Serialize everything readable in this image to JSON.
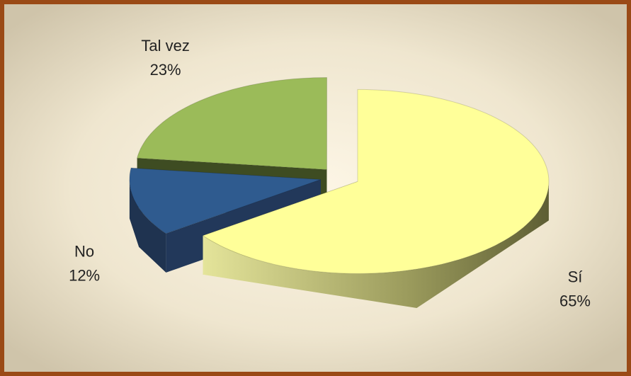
{
  "chart_data": {
    "type": "pie",
    "categories": [
      "Sí",
      "No",
      "Tal vez"
    ],
    "values": [
      65,
      12,
      23
    ],
    "value_labels": [
      "65%",
      "12%",
      "23%"
    ],
    "colors": [
      "#ffff99",
      "#2f5b8f",
      "#9bbb59"
    ]
  }
}
